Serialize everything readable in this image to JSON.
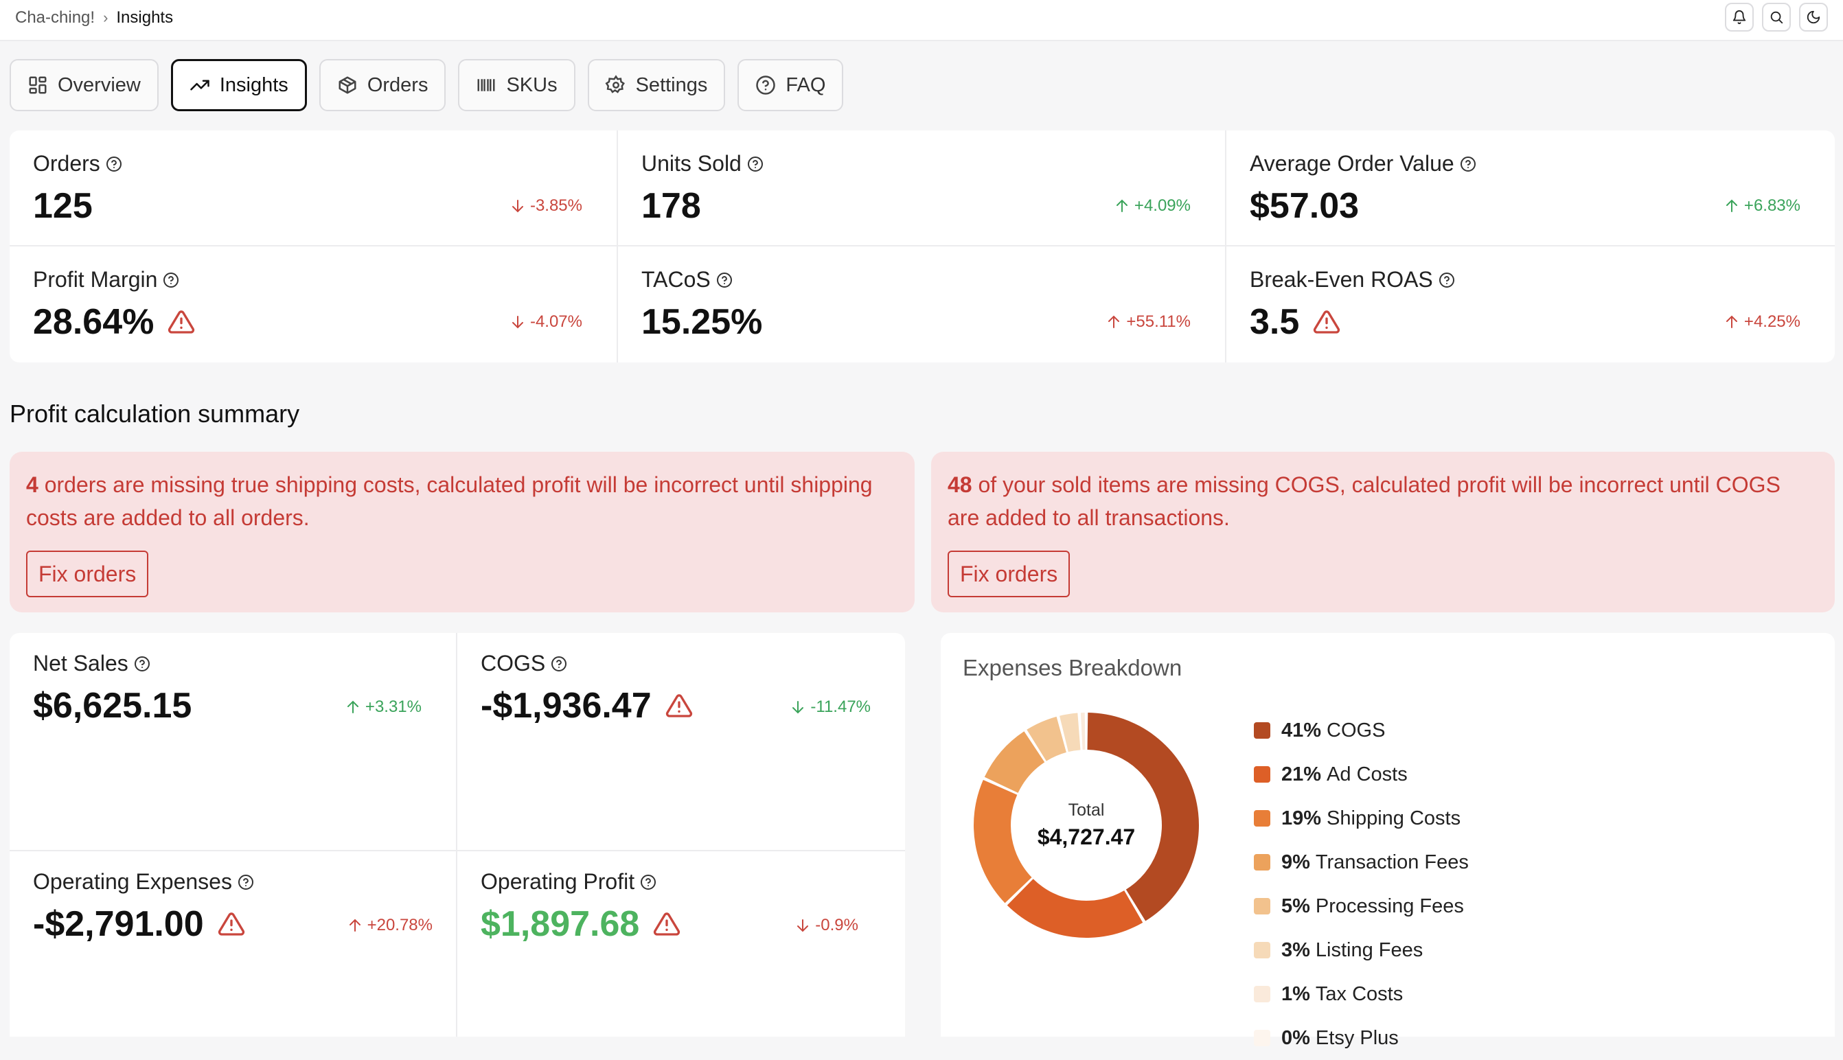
{
  "breadcrumb": {
    "root": "Cha-ching!",
    "current": "Insights"
  },
  "top_icons": [
    "bell-icon",
    "search-icon",
    "moon-icon"
  ],
  "tabs": [
    {
      "label": "Overview",
      "icon": "grid-icon",
      "active": false
    },
    {
      "label": "Insights",
      "icon": "trending-up-icon",
      "active": true
    },
    {
      "label": "Orders",
      "icon": "package-icon",
      "active": false
    },
    {
      "label": "SKUs",
      "icon": "barcode-icon",
      "active": false
    },
    {
      "label": "Settings",
      "icon": "gear-icon",
      "active": false
    },
    {
      "label": "FAQ",
      "icon": "help-circle-icon",
      "active": false
    }
  ],
  "metrics": [
    {
      "label": "Orders",
      "value": "125",
      "delta": "-3.85%",
      "direction": "down",
      "warning": false
    },
    {
      "label": "Units Sold",
      "value": "178",
      "delta": "+4.09%",
      "direction": "up",
      "warning": false
    },
    {
      "label": "Average Order Value",
      "value": "$57.03",
      "delta": "+6.83%",
      "direction": "up",
      "warning": false
    },
    {
      "label": "Profit Margin",
      "value": "28.64%",
      "delta": "-4.07%",
      "direction": "down",
      "warning": true
    },
    {
      "label": "TACoS",
      "value": "15.25%",
      "delta": "+55.11%",
      "direction": "up",
      "warning": false
    },
    {
      "label": "Break-Even ROAS",
      "value": "3.5",
      "delta": "+4.25%",
      "direction": "up",
      "warning": true
    }
  ],
  "section_title": "Profit calculation summary",
  "alerts": [
    {
      "count": "4",
      "text": " orders are missing true shipping costs, calculated profit will be incorrect until shipping costs are added to all orders.",
      "button": "Fix orders"
    },
    {
      "count": "48",
      "text": " of your sold items are missing COGS, calculated profit will be incorrect until COGS are added to all transactions.",
      "button": "Fix orders"
    }
  ],
  "summary": [
    {
      "label": "Net Sales",
      "value": "$6,625.15",
      "delta": "+3.31%",
      "direction": "up",
      "warning": false
    },
    {
      "label": "COGS",
      "value": "-$1,936.47",
      "delta": "-11.47%",
      "direction": "down",
      "warning": true
    },
    {
      "label": "Operating Expenses",
      "value": "-$2,791.00",
      "delta": "+20.78%",
      "direction": "up",
      "warning": true
    },
    {
      "label": "Operating Profit",
      "value": "$1,897.68",
      "delta": "-0.9%",
      "direction": "down",
      "warning": true
    }
  ],
  "expenses": {
    "title": "Expenses Breakdown",
    "center_label": "Total",
    "center_value": "$4,727.47",
    "items": [
      {
        "pct": "41%",
        "label": "COGS",
        "share": 41,
        "color": "#b34a22"
      },
      {
        "pct": "21%",
        "label": "Ad Costs",
        "share": 21,
        "color": "#dd5f27"
      },
      {
        "pct": "19%",
        "label": "Shipping Costs",
        "share": 19,
        "color": "#e87e38"
      },
      {
        "pct": "9%",
        "label": "Transaction Fees",
        "share": 9,
        "color": "#eca25c"
      },
      {
        "pct": "5%",
        "label": "Processing Fees",
        "share": 5,
        "color": "#f2c28d"
      },
      {
        "pct": "3%",
        "label": "Listing Fees",
        "share": 3,
        "color": "#f6dab8"
      },
      {
        "pct": "1%",
        "label": "Tax Costs",
        "share": 1,
        "color": "#faeadb"
      },
      {
        "pct": "0%",
        "label": "Etsy Plus",
        "share": 0,
        "color": "#fdf5ee"
      }
    ]
  },
  "colors": {
    "up": "#3aa35a",
    "down": "#c9463d",
    "alert_bg": "#f8e1e2",
    "alert_text": "#c53b35",
    "positive_value": "#4db35f"
  }
}
